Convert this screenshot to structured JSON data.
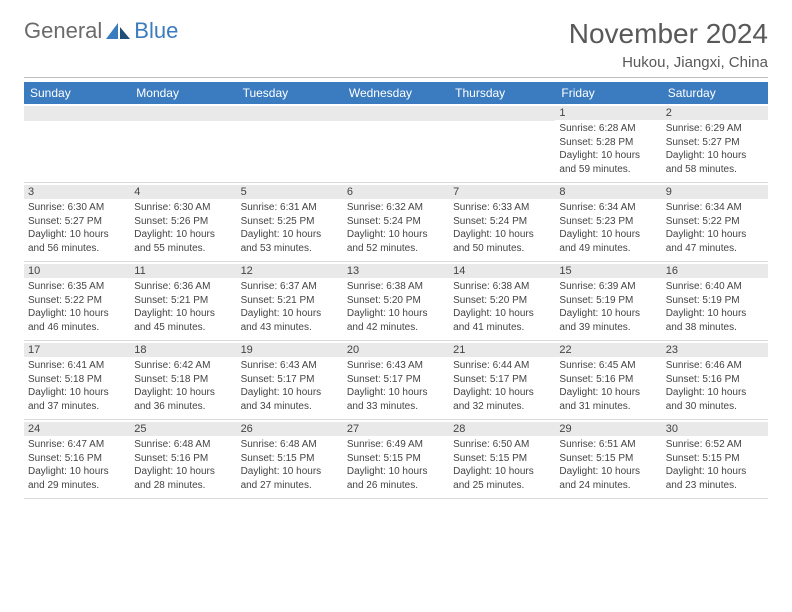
{
  "logo": {
    "text1": "General",
    "text2": "Blue"
  },
  "title": "November 2024",
  "location": "Hukou, Jiangxi, China",
  "colors": {
    "header_blue": "#3b7bbf",
    "logo_gray": "#6b6b6b",
    "text_gray": "#595959",
    "daynum_bg": "#e9e9e9",
    "rule": "#bfbfbf",
    "white": "#ffffff"
  },
  "daysOfWeek": [
    "Sunday",
    "Monday",
    "Tuesday",
    "Wednesday",
    "Thursday",
    "Friday",
    "Saturday"
  ],
  "weeks": [
    [
      {
        "n": "",
        "sr": "",
        "ss": "",
        "dl": ""
      },
      {
        "n": "",
        "sr": "",
        "ss": "",
        "dl": ""
      },
      {
        "n": "",
        "sr": "",
        "ss": "",
        "dl": ""
      },
      {
        "n": "",
        "sr": "",
        "ss": "",
        "dl": ""
      },
      {
        "n": "",
        "sr": "",
        "ss": "",
        "dl": ""
      },
      {
        "n": "1",
        "sr": "Sunrise: 6:28 AM",
        "ss": "Sunset: 5:28 PM",
        "dl": "Daylight: 10 hours and 59 minutes."
      },
      {
        "n": "2",
        "sr": "Sunrise: 6:29 AM",
        "ss": "Sunset: 5:27 PM",
        "dl": "Daylight: 10 hours and 58 minutes."
      }
    ],
    [
      {
        "n": "3",
        "sr": "Sunrise: 6:30 AM",
        "ss": "Sunset: 5:27 PM",
        "dl": "Daylight: 10 hours and 56 minutes."
      },
      {
        "n": "4",
        "sr": "Sunrise: 6:30 AM",
        "ss": "Sunset: 5:26 PM",
        "dl": "Daylight: 10 hours and 55 minutes."
      },
      {
        "n": "5",
        "sr": "Sunrise: 6:31 AM",
        "ss": "Sunset: 5:25 PM",
        "dl": "Daylight: 10 hours and 53 minutes."
      },
      {
        "n": "6",
        "sr": "Sunrise: 6:32 AM",
        "ss": "Sunset: 5:24 PM",
        "dl": "Daylight: 10 hours and 52 minutes."
      },
      {
        "n": "7",
        "sr": "Sunrise: 6:33 AM",
        "ss": "Sunset: 5:24 PM",
        "dl": "Daylight: 10 hours and 50 minutes."
      },
      {
        "n": "8",
        "sr": "Sunrise: 6:34 AM",
        "ss": "Sunset: 5:23 PM",
        "dl": "Daylight: 10 hours and 49 minutes."
      },
      {
        "n": "9",
        "sr": "Sunrise: 6:34 AM",
        "ss": "Sunset: 5:22 PM",
        "dl": "Daylight: 10 hours and 47 minutes."
      }
    ],
    [
      {
        "n": "10",
        "sr": "Sunrise: 6:35 AM",
        "ss": "Sunset: 5:22 PM",
        "dl": "Daylight: 10 hours and 46 minutes."
      },
      {
        "n": "11",
        "sr": "Sunrise: 6:36 AM",
        "ss": "Sunset: 5:21 PM",
        "dl": "Daylight: 10 hours and 45 minutes."
      },
      {
        "n": "12",
        "sr": "Sunrise: 6:37 AM",
        "ss": "Sunset: 5:21 PM",
        "dl": "Daylight: 10 hours and 43 minutes."
      },
      {
        "n": "13",
        "sr": "Sunrise: 6:38 AM",
        "ss": "Sunset: 5:20 PM",
        "dl": "Daylight: 10 hours and 42 minutes."
      },
      {
        "n": "14",
        "sr": "Sunrise: 6:38 AM",
        "ss": "Sunset: 5:20 PM",
        "dl": "Daylight: 10 hours and 41 minutes."
      },
      {
        "n": "15",
        "sr": "Sunrise: 6:39 AM",
        "ss": "Sunset: 5:19 PM",
        "dl": "Daylight: 10 hours and 39 minutes."
      },
      {
        "n": "16",
        "sr": "Sunrise: 6:40 AM",
        "ss": "Sunset: 5:19 PM",
        "dl": "Daylight: 10 hours and 38 minutes."
      }
    ],
    [
      {
        "n": "17",
        "sr": "Sunrise: 6:41 AM",
        "ss": "Sunset: 5:18 PM",
        "dl": "Daylight: 10 hours and 37 minutes."
      },
      {
        "n": "18",
        "sr": "Sunrise: 6:42 AM",
        "ss": "Sunset: 5:18 PM",
        "dl": "Daylight: 10 hours and 36 minutes."
      },
      {
        "n": "19",
        "sr": "Sunrise: 6:43 AM",
        "ss": "Sunset: 5:17 PM",
        "dl": "Daylight: 10 hours and 34 minutes."
      },
      {
        "n": "20",
        "sr": "Sunrise: 6:43 AM",
        "ss": "Sunset: 5:17 PM",
        "dl": "Daylight: 10 hours and 33 minutes."
      },
      {
        "n": "21",
        "sr": "Sunrise: 6:44 AM",
        "ss": "Sunset: 5:17 PM",
        "dl": "Daylight: 10 hours and 32 minutes."
      },
      {
        "n": "22",
        "sr": "Sunrise: 6:45 AM",
        "ss": "Sunset: 5:16 PM",
        "dl": "Daylight: 10 hours and 31 minutes."
      },
      {
        "n": "23",
        "sr": "Sunrise: 6:46 AM",
        "ss": "Sunset: 5:16 PM",
        "dl": "Daylight: 10 hours and 30 minutes."
      }
    ],
    [
      {
        "n": "24",
        "sr": "Sunrise: 6:47 AM",
        "ss": "Sunset: 5:16 PM",
        "dl": "Daylight: 10 hours and 29 minutes."
      },
      {
        "n": "25",
        "sr": "Sunrise: 6:48 AM",
        "ss": "Sunset: 5:16 PM",
        "dl": "Daylight: 10 hours and 28 minutes."
      },
      {
        "n": "26",
        "sr": "Sunrise: 6:48 AM",
        "ss": "Sunset: 5:15 PM",
        "dl": "Daylight: 10 hours and 27 minutes."
      },
      {
        "n": "27",
        "sr": "Sunrise: 6:49 AM",
        "ss": "Sunset: 5:15 PM",
        "dl": "Daylight: 10 hours and 26 minutes."
      },
      {
        "n": "28",
        "sr": "Sunrise: 6:50 AM",
        "ss": "Sunset: 5:15 PM",
        "dl": "Daylight: 10 hours and 25 minutes."
      },
      {
        "n": "29",
        "sr": "Sunrise: 6:51 AM",
        "ss": "Sunset: 5:15 PM",
        "dl": "Daylight: 10 hours and 24 minutes."
      },
      {
        "n": "30",
        "sr": "Sunrise: 6:52 AM",
        "ss": "Sunset: 5:15 PM",
        "dl": "Daylight: 10 hours and 23 minutes."
      }
    ]
  ]
}
